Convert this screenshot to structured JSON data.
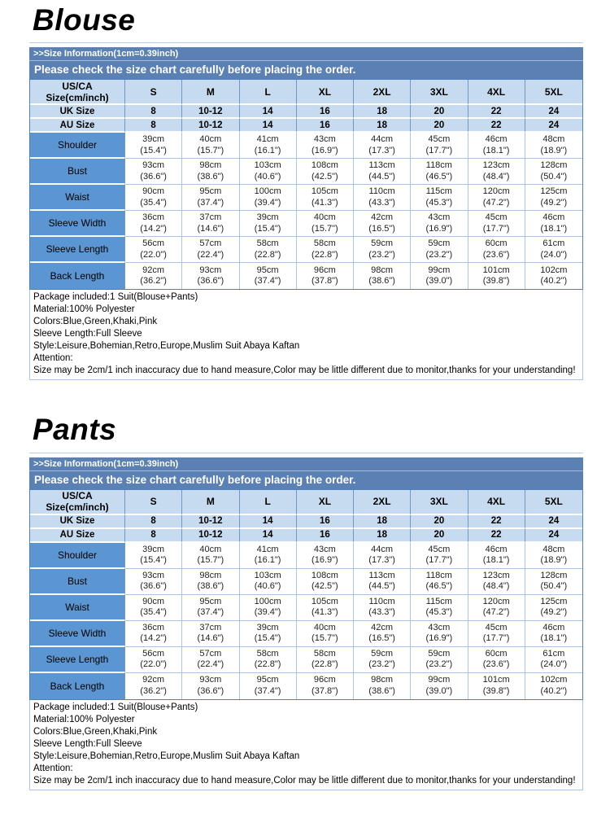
{
  "colors": {
    "header_bar_bg": "#5a80b4",
    "light_cell_bg": "#c6dbef",
    "label_cell_bg": "#5b96d3",
    "table_border": "#4f81b9",
    "cell_border_light": "#a9c6e4",
    "bar_text": "#ffffff"
  },
  "sections": [
    {
      "title": "Blouse",
      "size_info": ">>Size Information(1cm=0.39inch)",
      "notice": "Please check the size chart carefully before placing the order.",
      "table": {
        "corner_label_line1": "US/CA",
        "corner_label_line2": "Size(cm/inch)",
        "sizes": [
          "S",
          "M",
          "L",
          "XL",
          "2XL",
          "3XL",
          "4XL",
          "5XL"
        ],
        "uk": {
          "label": "UK Size",
          "values": [
            "8",
            "10-12",
            "14",
            "16",
            "18",
            "20",
            "22",
            "24"
          ]
        },
        "au": {
          "label": "AU Size",
          "values": [
            "8",
            "10-12",
            "14",
            "16",
            "18",
            "20",
            "22",
            "24"
          ]
        },
        "measurements": [
          {
            "label": "Shoulder",
            "cm": [
              "39cm",
              "40cm",
              "41cm",
              "43cm",
              "44cm",
              "45cm",
              "46cm",
              "48cm"
            ],
            "inch": [
              "(15.4\")",
              "(15.7\")",
              "(16.1\")",
              "(16.9\")",
              "(17.3\")",
              "(17.7\")",
              "(18.1\")",
              "(18.9\")"
            ]
          },
          {
            "label": "Bust",
            "cm": [
              "93cm",
              "98cm",
              "103cm",
              "108cm",
              "113cm",
              "118cm",
              "123cm",
              "128cm"
            ],
            "inch": [
              "(36.6\")",
              "(38.6\")",
              "(40.6\")",
              "(42.5\")",
              "(44.5\")",
              "(46.5\")",
              "(48.4\")",
              "(50.4\")"
            ]
          },
          {
            "label": "Waist",
            "cm": [
              "90cm",
              "95cm",
              "100cm",
              "105cm",
              "110cm",
              "115cm",
              "120cm",
              "125cm"
            ],
            "inch": [
              "(35.4\")",
              "(37.4\")",
              "(39.4\")",
              "(41.3\")",
              "(43.3\")",
              "(45.3\")",
              "(47.2\")",
              "(49.2\")"
            ]
          },
          {
            "label": "Sleeve Width",
            "cm": [
              "36cm",
              "37cm",
              "39cm",
              "40cm",
              "42cm",
              "43cm",
              "45cm",
              "46cm"
            ],
            "inch": [
              "(14.2\")",
              "(14.6\")",
              "(15.4\")",
              "(15.7\")",
              "(16.5\")",
              "(16.9\")",
              "(17.7\")",
              "(18.1\")"
            ]
          },
          {
            "label": "Sleeve Length",
            "cm": [
              "56cm",
              "57cm",
              "58cm",
              "58cm",
              "59cm",
              "59cm",
              "60cm",
              "61cm"
            ],
            "inch": [
              "(22.0\")",
              "(22.4\")",
              "(22.8\")",
              "(22.8\")",
              "(23.2\")",
              "(23.2\")",
              "(23.6\")",
              "(24.0\")"
            ]
          },
          {
            "label": "Back Length",
            "cm": [
              "92cm",
              "93cm",
              "95cm",
              "96cm",
              "98cm",
              "99cm",
              "101cm",
              "102cm"
            ],
            "inch": [
              "(36.2\")",
              "(36.6\")",
              "(37.4\")",
              "(37.8\")",
              "(38.6\")",
              "(39.0\")",
              "(39.8\")",
              "(40.2\")"
            ]
          }
        ]
      },
      "notes": [
        "Package included:1 Suit(Blouse+Pants)",
        "Material:100% Polyester",
        "Colors:Blue,Green,Khaki,Pink",
        "Sleeve Length:Full Sleeve",
        "Style:Leisure,Bohemian,Retro,Europe,Muslim Suit Abaya Kaftan",
        "Attention:",
        "Size may be 2cm/1 inch inaccuracy due to hand measure,Color may be little different due to monitor,thanks for your understanding!"
      ]
    },
    {
      "title": "Pants",
      "size_info": ">>Size Information(1cm=0.39inch)",
      "notice": "Please check the size chart carefully before placing the order.",
      "table": {
        "corner_label_line1": "US/CA",
        "corner_label_line2": "Size(cm/inch)",
        "sizes": [
          "S",
          "M",
          "L",
          "XL",
          "2XL",
          "3XL",
          "4XL",
          "5XL"
        ],
        "uk": {
          "label": "UK Size",
          "values": [
            "8",
            "10-12",
            "14",
            "16",
            "18",
            "20",
            "22",
            "24"
          ]
        },
        "au": {
          "label": "AU Size",
          "values": [
            "8",
            "10-12",
            "14",
            "16",
            "18",
            "20",
            "22",
            "24"
          ]
        },
        "measurements": [
          {
            "label": "Shoulder",
            "cm": [
              "39cm",
              "40cm",
              "41cm",
              "43cm",
              "44cm",
              "45cm",
              "46cm",
              "48cm"
            ],
            "inch": [
              "(15.4\")",
              "(15.7\")",
              "(16.1\")",
              "(16.9\")",
              "(17.3\")",
              "(17.7\")",
              "(18.1\")",
              "(18.9\")"
            ]
          },
          {
            "label": "Bust",
            "cm": [
              "93cm",
              "98cm",
              "103cm",
              "108cm",
              "113cm",
              "118cm",
              "123cm",
              "128cm"
            ],
            "inch": [
              "(36.6\")",
              "(38.6\")",
              "(40.6\")",
              "(42.5\")",
              "(44.5\")",
              "(46.5\")",
              "(48.4\")",
              "(50.4\")"
            ]
          },
          {
            "label": "Waist",
            "cm": [
              "90cm",
              "95cm",
              "100cm",
              "105cm",
              "110cm",
              "115cm",
              "120cm",
              "125cm"
            ],
            "inch": [
              "(35.4\")",
              "(37.4\")",
              "(39.4\")",
              "(41.3\")",
              "(43.3\")",
              "(45.3\")",
              "(47.2\")",
              "(49.2\")"
            ]
          },
          {
            "label": "Sleeve Width",
            "cm": [
              "36cm",
              "37cm",
              "39cm",
              "40cm",
              "42cm",
              "43cm",
              "45cm",
              "46cm"
            ],
            "inch": [
              "(14.2\")",
              "(14.6\")",
              "(15.4\")",
              "(15.7\")",
              "(16.5\")",
              "(16.9\")",
              "(17.7\")",
              "(18.1\")"
            ]
          },
          {
            "label": "Sleeve Length",
            "cm": [
              "56cm",
              "57cm",
              "58cm",
              "58cm",
              "59cm",
              "59cm",
              "60cm",
              "61cm"
            ],
            "inch": [
              "(22.0\")",
              "(22.4\")",
              "(22.8\")",
              "(22.8\")",
              "(23.2\")",
              "(23.2\")",
              "(23.6\")",
              "(24.0\")"
            ]
          },
          {
            "label": "Back Length",
            "cm": [
              "92cm",
              "93cm",
              "95cm",
              "96cm",
              "98cm",
              "99cm",
              "101cm",
              "102cm"
            ],
            "inch": [
              "(36.2\")",
              "(36.6\")",
              "(37.4\")",
              "(37.8\")",
              "(38.6\")",
              "(39.0\")",
              "(39.8\")",
              "(40.2\")"
            ]
          }
        ]
      },
      "notes": [
        "Package included:1 Suit(Blouse+Pants)",
        "Material:100% Polyester",
        "Colors:Blue,Green,Khaki,Pink",
        "Sleeve Length:Full Sleeve",
        "Style:Leisure,Bohemian,Retro,Europe,Muslim Suit Abaya Kaftan",
        "Attention:",
        "Size may be 2cm/1 inch inaccuracy due to hand measure,Color may be little different due to monitor,thanks for your understanding!"
      ]
    }
  ]
}
